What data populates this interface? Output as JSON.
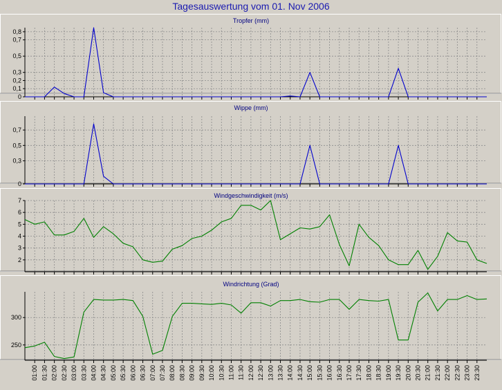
{
  "title": "Tagesauswertung vom 01. Nov 2006",
  "colors": {
    "precip": "#0000cc",
    "wind": "#008000",
    "background": "#d4d0c8"
  },
  "x_tick_labels": [
    "01:00",
    "01:30",
    "02:00",
    "02:30",
    "03:00",
    "03:30",
    "04:00",
    "04:30",
    "05:00",
    "05:30",
    "06:00",
    "06:30",
    "07:00",
    "07:30",
    "08:00",
    "08:30",
    "09:00",
    "09:30",
    "10:00",
    "10:30",
    "11:00",
    "11:30",
    "12:00",
    "12:30",
    "13:00",
    "13:30",
    "14:00",
    "14:30",
    "15:00",
    "15:30",
    "16:00",
    "16:30",
    "17:00",
    "17:30",
    "18:00",
    "18:30",
    "19:00",
    "19:30",
    "20:00",
    "20:30",
    "21:00",
    "21:30",
    "22:00",
    "22:30",
    "23:00",
    "23:30"
  ],
  "chart_data": [
    {
      "type": "line",
      "title": "Tropfer (mm)",
      "color": "precip",
      "ylim": [
        0,
        0.85
      ],
      "yticks": [
        0,
        0.1,
        0.2,
        0.3,
        0.5,
        0.7,
        0.8
      ],
      "ytick_labels": [
        "0",
        "0,1",
        "0,2",
        "0,3",
        "0,5",
        "0,7",
        "0,8"
      ],
      "x": [
        0.5,
        1,
        1.5,
        2,
        2.5,
        3,
        3.5,
        4,
        4.5,
        5,
        5.5,
        6,
        6.5,
        7,
        7.5,
        8,
        8.5,
        9,
        9.5,
        10,
        10.5,
        11,
        11.5,
        12,
        12.5,
        13,
        13.5,
        14,
        14.5,
        15,
        15.5,
        16,
        16.5,
        17,
        17.5,
        18,
        18.5,
        19,
        19.5,
        20,
        20.5,
        21,
        21.5,
        22,
        22.5,
        23,
        23.5,
        24
      ],
      "values": [
        0,
        0,
        0,
        0.12,
        0.04,
        0,
        0,
        0.85,
        0.05,
        0,
        0,
        0,
        0,
        0,
        0,
        0,
        0,
        0,
        0,
        0,
        0,
        0,
        0,
        0,
        0,
        0,
        0,
        0.01,
        0,
        0.3,
        0,
        0,
        0,
        0,
        0,
        0,
        0,
        0,
        0.35,
        0,
        0,
        0,
        0,
        0,
        0,
        0,
        0,
        0
      ]
    },
    {
      "type": "line",
      "title": "Wippe (mm)",
      "color": "precip",
      "ylim": [
        0,
        0.88
      ],
      "yticks": [
        0,
        0.3,
        0.5,
        0.7
      ],
      "ytick_labels": [
        "0",
        "0,3",
        "0,5",
        "0,7"
      ],
      "x": [
        0.5,
        1,
        1.5,
        2,
        2.5,
        3,
        3.5,
        4,
        4.5,
        5,
        5.5,
        6,
        6.5,
        7,
        7.5,
        8,
        8.5,
        9,
        9.5,
        10,
        10.5,
        11,
        11.5,
        12,
        12.5,
        13,
        13.5,
        14,
        14.5,
        15,
        15.5,
        16,
        16.5,
        17,
        17.5,
        18,
        18.5,
        19,
        19.5,
        20,
        20.5,
        21,
        21.5,
        22,
        22.5,
        23,
        23.5,
        24
      ],
      "values": [
        0,
        0,
        0,
        0,
        0,
        0,
        0,
        0.78,
        0.1,
        0,
        0,
        0,
        0,
        0,
        0,
        0,
        0,
        0,
        0,
        0,
        0,
        0,
        0,
        0,
        0,
        0,
        0,
        0,
        0,
        0.5,
        0,
        0,
        0,
        0,
        0,
        0,
        0,
        0,
        0.5,
        0,
        0,
        0,
        0,
        0,
        0,
        0,
        0,
        0
      ]
    },
    {
      "type": "line",
      "title": "Windgeschwindigkeit (m/s)",
      "color": "wind",
      "ylim": [
        1,
        7
      ],
      "yticks": [
        2,
        3,
        4,
        5,
        6,
        7
      ],
      "ytick_labels": [
        "2",
        "3",
        "4",
        "5",
        "6",
        "7"
      ],
      "x": [
        0.5,
        1,
        1.5,
        2,
        2.5,
        3,
        3.5,
        4,
        4.5,
        5,
        5.5,
        6,
        6.5,
        7,
        7.5,
        8,
        8.5,
        9,
        9.5,
        10,
        10.5,
        11,
        11.5,
        12,
        12.5,
        13,
        13.5,
        14,
        14.5,
        15,
        15.5,
        16,
        16.5,
        17,
        17.5,
        18,
        18.5,
        19,
        19.5,
        20,
        20.5,
        21,
        21.5,
        22,
        22.5,
        23,
        23.5,
        24
      ],
      "values": [
        5.4,
        5.0,
        5.2,
        4.1,
        4.1,
        4.4,
        5.5,
        3.9,
        4.8,
        4.2,
        3.4,
        3.1,
        2.0,
        1.8,
        1.9,
        2.9,
        3.2,
        3.8,
        4.0,
        4.5,
        5.2,
        5.5,
        6.6,
        6.6,
        6.2,
        7.0,
        3.7,
        4.2,
        4.7,
        4.6,
        4.8,
        5.8,
        3.3,
        1.5,
        5.0,
        3.9,
        3.2,
        2.0,
        1.6,
        1.6,
        2.8,
        1.2,
        2.3,
        4.3,
        3.6,
        3.5,
        2.0,
        1.7
      ]
    },
    {
      "type": "line",
      "title": "Windrichtung (Grad)",
      "color": "wind",
      "ylim": [
        222,
        347
      ],
      "yticks": [
        250,
        300
      ],
      "ytick_labels": [
        "250",
        "300"
      ],
      "x": [
        0.5,
        1,
        1.5,
        2,
        2.5,
        3,
        3.5,
        4,
        4.5,
        5,
        5.5,
        6,
        6.5,
        7,
        7.5,
        8,
        8.5,
        9,
        9.5,
        10,
        10.5,
        11,
        11.5,
        12,
        12.5,
        13,
        13.5,
        14,
        14.5,
        15,
        15.5,
        16,
        16.5,
        17,
        17.5,
        18,
        18.5,
        19,
        19.5,
        20,
        20.5,
        21,
        21.5,
        22,
        22.5,
        23,
        23.5,
        24
      ],
      "values": [
        245,
        248,
        255,
        229,
        225,
        228,
        310,
        333,
        332,
        332,
        333,
        331,
        302,
        233,
        240,
        302,
        326,
        326,
        325,
        324,
        326,
        323,
        308,
        327,
        327,
        321,
        331,
        331,
        333,
        329,
        328,
        333,
        333,
        315,
        333,
        331,
        330,
        333,
        259,
        259,
        328,
        345,
        312,
        333,
        333,
        340,
        333,
        334
      ]
    }
  ]
}
